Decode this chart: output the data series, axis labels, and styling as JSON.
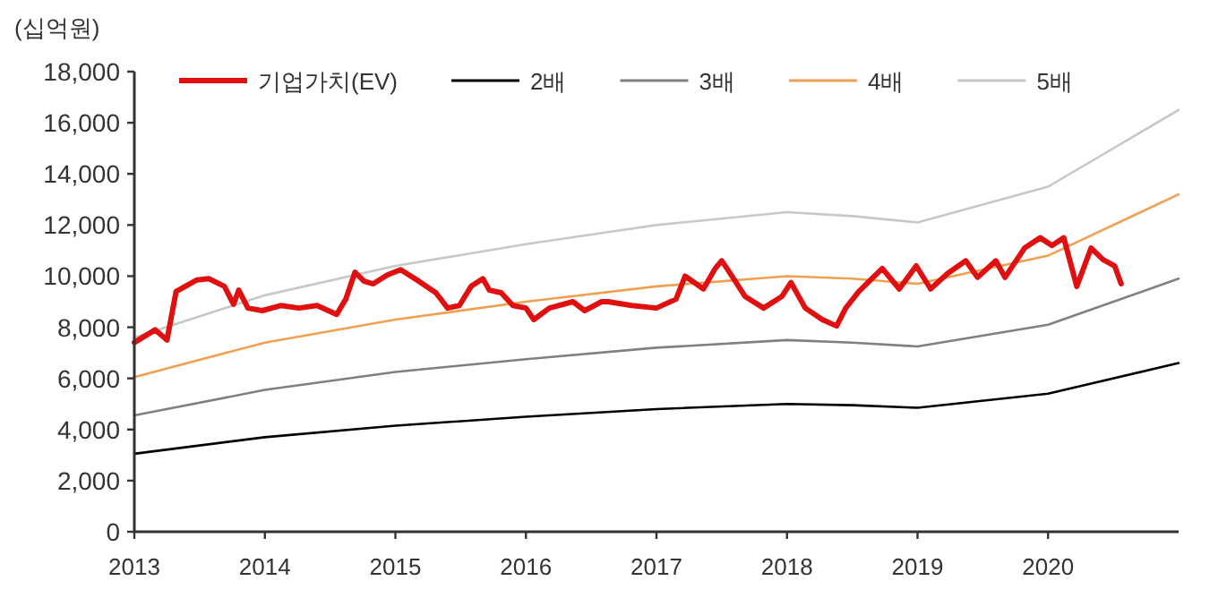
{
  "chart_data": {
    "type": "line",
    "ylabel": "(십억원)",
    "xlim": [
      2013,
      2021
    ],
    "ylim": [
      0,
      18000
    ],
    "xticks": [
      2013,
      2014,
      2015,
      2016,
      2017,
      2018,
      2019,
      2020
    ],
    "yticks": [
      {
        "value": 0,
        "label": "0"
      },
      {
        "value": 2000,
        "label": "2,000"
      },
      {
        "value": 4000,
        "label": "4,000"
      },
      {
        "value": 6000,
        "label": "6,000"
      },
      {
        "value": 8000,
        "label": "8,000"
      },
      {
        "value": 10000,
        "label": "10,000"
      },
      {
        "value": 12000,
        "label": "12,000"
      },
      {
        "value": 14000,
        "label": "14,000"
      },
      {
        "value": 16000,
        "label": "16,000"
      },
      {
        "value": 18000,
        "label": "18,000"
      }
    ],
    "legend": "top",
    "grid": false,
    "marker": "none",
    "line_style": "solid",
    "series": [
      {
        "name": "기업가치(EV)",
        "color": "#e01010",
        "x": [
          2013.0,
          2013.16,
          2013.25,
          2013.32,
          2013.48,
          2013.57,
          2013.69,
          2013.76,
          2013.8,
          2013.87,
          2013.98,
          2014.12,
          2014.26,
          2014.4,
          2014.55,
          2014.62,
          2014.69,
          2014.76,
          2014.83,
          2014.94,
          2015.04,
          2015.18,
          2015.31,
          2015.4,
          2015.49,
          2015.58,
          2015.67,
          2015.72,
          2015.81,
          2015.9,
          2016.0,
          2016.06,
          2016.18,
          2016.36,
          2016.45,
          2016.58,
          2016.63,
          2016.81,
          2017.0,
          2017.15,
          2017.22,
          2017.36,
          2017.45,
          2017.5,
          2017.54,
          2017.68,
          2017.82,
          2017.96,
          2018.03,
          2018.14,
          2018.27,
          2018.38,
          2018.45,
          2018.55,
          2018.64,
          2018.73,
          2018.86,
          2018.99,
          2019.1,
          2019.23,
          2019.37,
          2019.46,
          2019.6,
          2019.67,
          2019.82,
          2019.94,
          2020.03,
          2020.12,
          2020.22,
          2020.33,
          2020.42,
          2020.51,
          2020.56
        ],
        "values": [
          7400,
          7900,
          7500,
          9400,
          9850,
          9900,
          9600,
          8900,
          9450,
          8750,
          8650,
          8850,
          8750,
          8850,
          8500,
          9100,
          10150,
          9800,
          9700,
          10050,
          10250,
          9800,
          9350,
          8750,
          8850,
          9600,
          9900,
          9450,
          9350,
          8850,
          8750,
          8300,
          8750,
          9000,
          8650,
          9000,
          9000,
          8850,
          8750,
          9100,
          10000,
          9500,
          10300,
          10600,
          10300,
          9200,
          8750,
          9200,
          9750,
          8750,
          8300,
          8050,
          8750,
          9400,
          9850,
          10300,
          9500,
          10400,
          9500,
          10100,
          10600,
          9950,
          10600,
          9950,
          11100,
          11500,
          11200,
          11500,
          9600,
          11100,
          10650,
          10400,
          9700
        ]
      },
      {
        "name": "2배",
        "color": "#000000",
        "x": [
          2013,
          2014,
          2015,
          2016,
          2017,
          2018,
          2018.5,
          2019,
          2020,
          2021
        ],
        "values": [
          3050,
          3700,
          4150,
          4500,
          4800,
          5000,
          4950,
          4850,
          5400,
          6600
        ]
      },
      {
        "name": "3배",
        "color": "#808080",
        "x": [
          2013,
          2014,
          2015,
          2016,
          2017,
          2018,
          2018.5,
          2019,
          2020,
          2021
        ],
        "values": [
          4550,
          5550,
          6250,
          6750,
          7200,
          7500,
          7400,
          7250,
          8100,
          9900
        ]
      },
      {
        "name": "4배",
        "color": "#f0a050",
        "x": [
          2013,
          2014,
          2015,
          2016,
          2017,
          2018,
          2018.5,
          2019,
          2020,
          2021
        ],
        "values": [
          6050,
          7400,
          8300,
          9000,
          9600,
          10000,
          9900,
          9700,
          10800,
          13200
        ]
      },
      {
        "name": "5배",
        "color": "#c8c8c8",
        "x": [
          2013,
          2014,
          2015,
          2016,
          2017,
          2018,
          2018.5,
          2019,
          2020,
          2021
        ],
        "values": [
          7600,
          9250,
          10400,
          11250,
          12000,
          12500,
          12350,
          12100,
          13500,
          16500
        ]
      }
    ]
  }
}
